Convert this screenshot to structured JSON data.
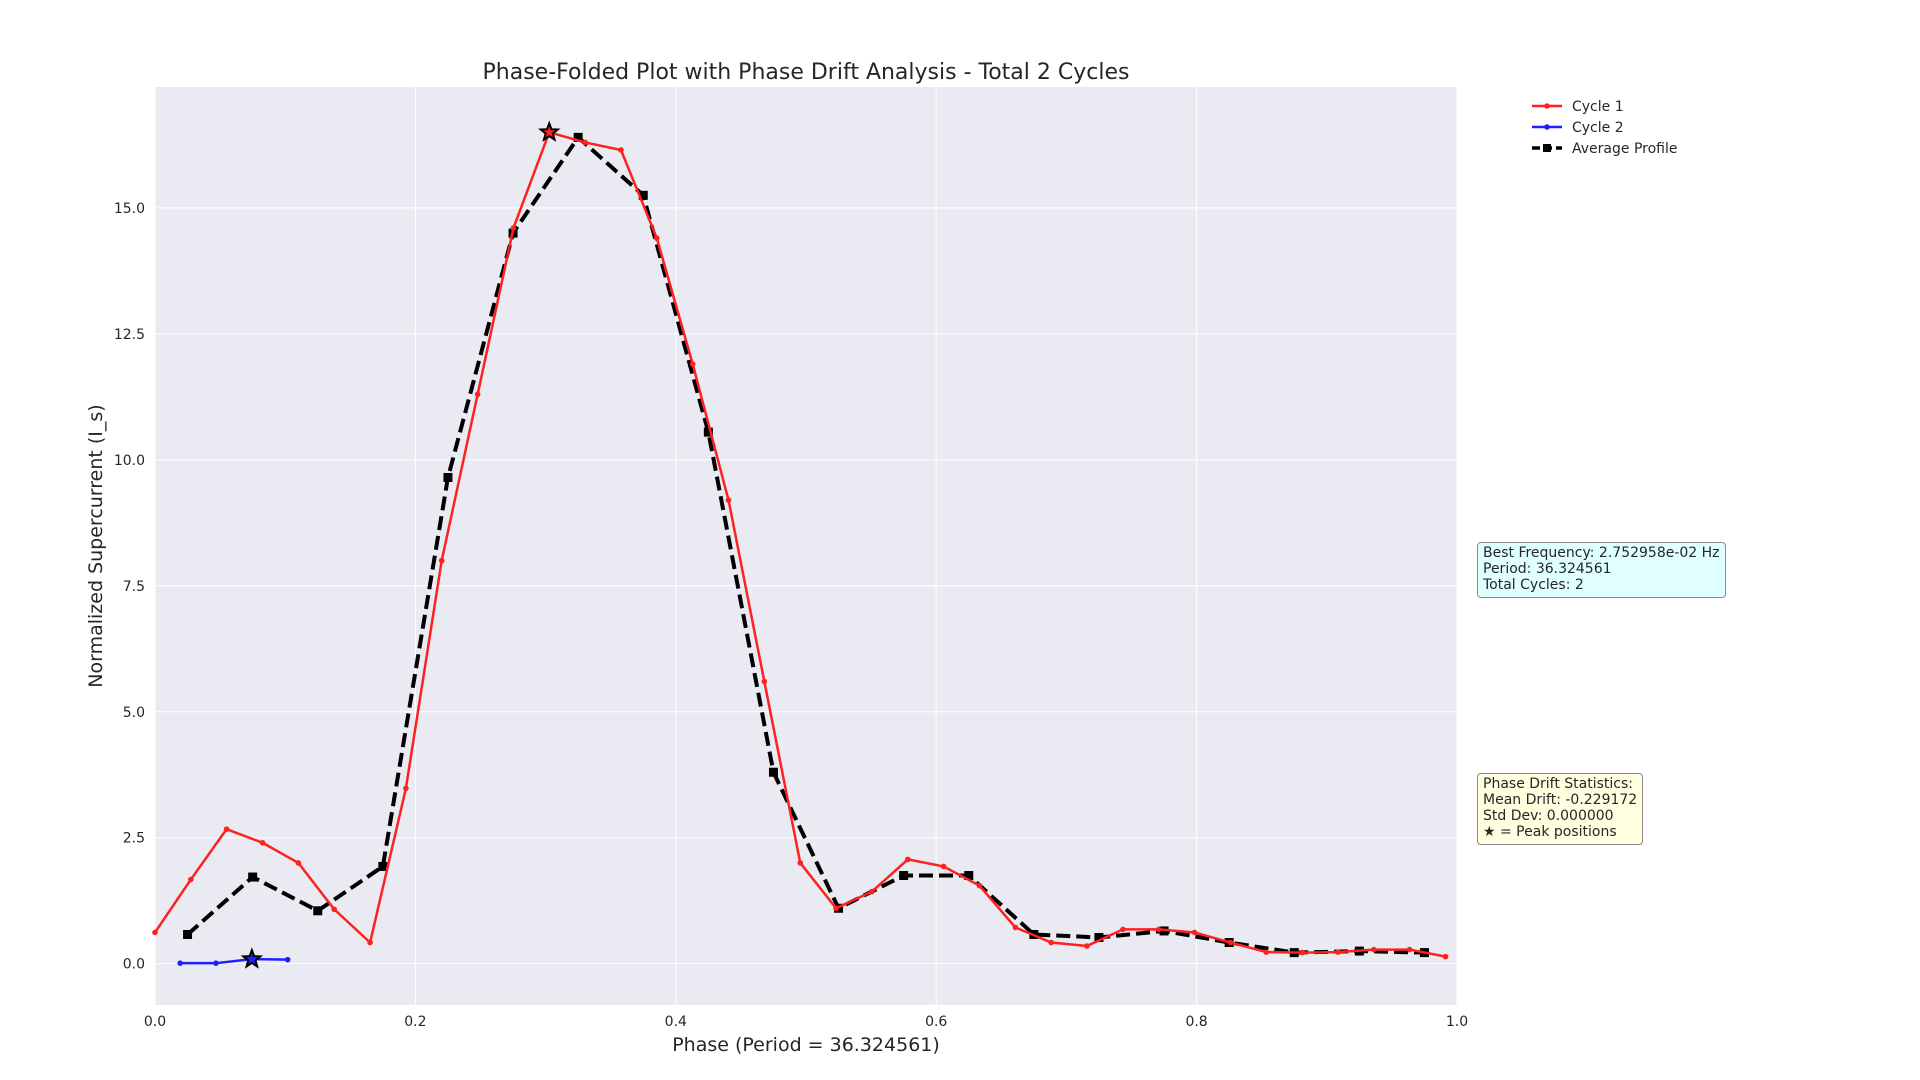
{
  "chart_data": {
    "type": "line",
    "title": "Phase-Folded Plot with Phase Drift Analysis - Total 2 Cycles",
    "xlabel": "Phase (Period = 36.324561)",
    "ylabel": "Normalized Supercurrent (I_s)",
    "xlim": [
      0.0,
      1.0
    ],
    "ylim": [
      -0.82,
      17.4
    ],
    "xticks": [
      0.0,
      0.2,
      0.4,
      0.6,
      0.8,
      1.0
    ],
    "xtick_labels": [
      "0.0",
      "0.2",
      "0.4",
      "0.6",
      "0.8",
      "1.0"
    ],
    "yticks": [
      0.0,
      2.5,
      5.0,
      7.5,
      10.0,
      12.5,
      15.0
    ],
    "ytick_labels": [
      "0.0",
      "2.5",
      "5.0",
      "7.5",
      "10.0",
      "12.5",
      "15.0"
    ],
    "grid": true,
    "legend_position": "outside-top-right",
    "series": [
      {
        "name": "Cycle 1",
        "color": "#ff2020",
        "style": "solid",
        "marker": "dot",
        "x": [
          0.0,
          0.0275,
          0.055,
          0.0826,
          0.1101,
          0.1376,
          0.1652,
          0.1927,
          0.2202,
          0.2478,
          0.2753,
          0.3028,
          0.3304,
          0.3579,
          0.3854,
          0.413,
          0.4405,
          0.468,
          0.4956,
          0.5231,
          0.5506,
          0.5782,
          0.6057,
          0.6332,
          0.6608,
          0.6883,
          0.7158,
          0.7434,
          0.7709,
          0.7984,
          0.826,
          0.8535,
          0.881,
          0.9086,
          0.9361,
          0.9636,
          0.9912
        ],
        "y": [
          0.62,
          1.67,
          2.67,
          2.4,
          2.0,
          1.08,
          0.42,
          3.48,
          8.0,
          11.3,
          14.6,
          16.5,
          16.3,
          16.15,
          14.4,
          11.9,
          9.2,
          5.6,
          2.0,
          1.1,
          1.43,
          2.07,
          1.93,
          1.55,
          0.72,
          0.42,
          0.35,
          0.68,
          0.68,
          0.62,
          0.42,
          0.23,
          0.22,
          0.23,
          0.28,
          0.28,
          0.14
        ]
      },
      {
        "name": "Cycle 2",
        "color": "#2020ff",
        "style": "solid",
        "marker": "dot",
        "x": [
          0.0193,
          0.0468,
          0.0744,
          0.1019
        ],
        "y": [
          0.01,
          0.01,
          0.09,
          0.08
        ]
      },
      {
        "name": "Average Profile",
        "color": "#000000",
        "style": "dashed",
        "marker": "square",
        "x": [
          0.025,
          0.075,
          0.125,
          0.175,
          0.225,
          0.275,
          0.325,
          0.375,
          0.425,
          0.475,
          0.525,
          0.575,
          0.625,
          0.675,
          0.725,
          0.775,
          0.825,
          0.875,
          0.925,
          0.975
        ],
        "y": [
          0.58,
          1.72,
          1.05,
          1.93,
          9.65,
          14.5,
          16.4,
          15.25,
          10.55,
          3.8,
          1.1,
          1.75,
          1.75,
          0.58,
          0.52,
          0.65,
          0.42,
          0.22,
          0.25,
          0.22
        ]
      }
    ],
    "peak_markers": [
      {
        "series": "Cycle 1",
        "x": 0.3028,
        "y": 16.5
      },
      {
        "series": "Cycle 2",
        "x": 0.0744,
        "y": 0.09
      }
    ]
  },
  "stats_box": {
    "line1": "Best Frequency: 2.752958e-02 Hz",
    "line2": "Period: 36.324561",
    "line3": "Total Cycles: 2",
    "bg": "#e0ffff"
  },
  "drift_box": {
    "line1": "Phase Drift Statistics:",
    "line2": "Mean Drift: -0.229172",
    "line3": "Std Dev: 0.000000",
    "line4": "★ = Peak positions",
    "bg": "#ffffe0"
  },
  "colors": {
    "plot_bg": "#eaeaf2",
    "grid": "#ffffff",
    "text": "#262626"
  }
}
